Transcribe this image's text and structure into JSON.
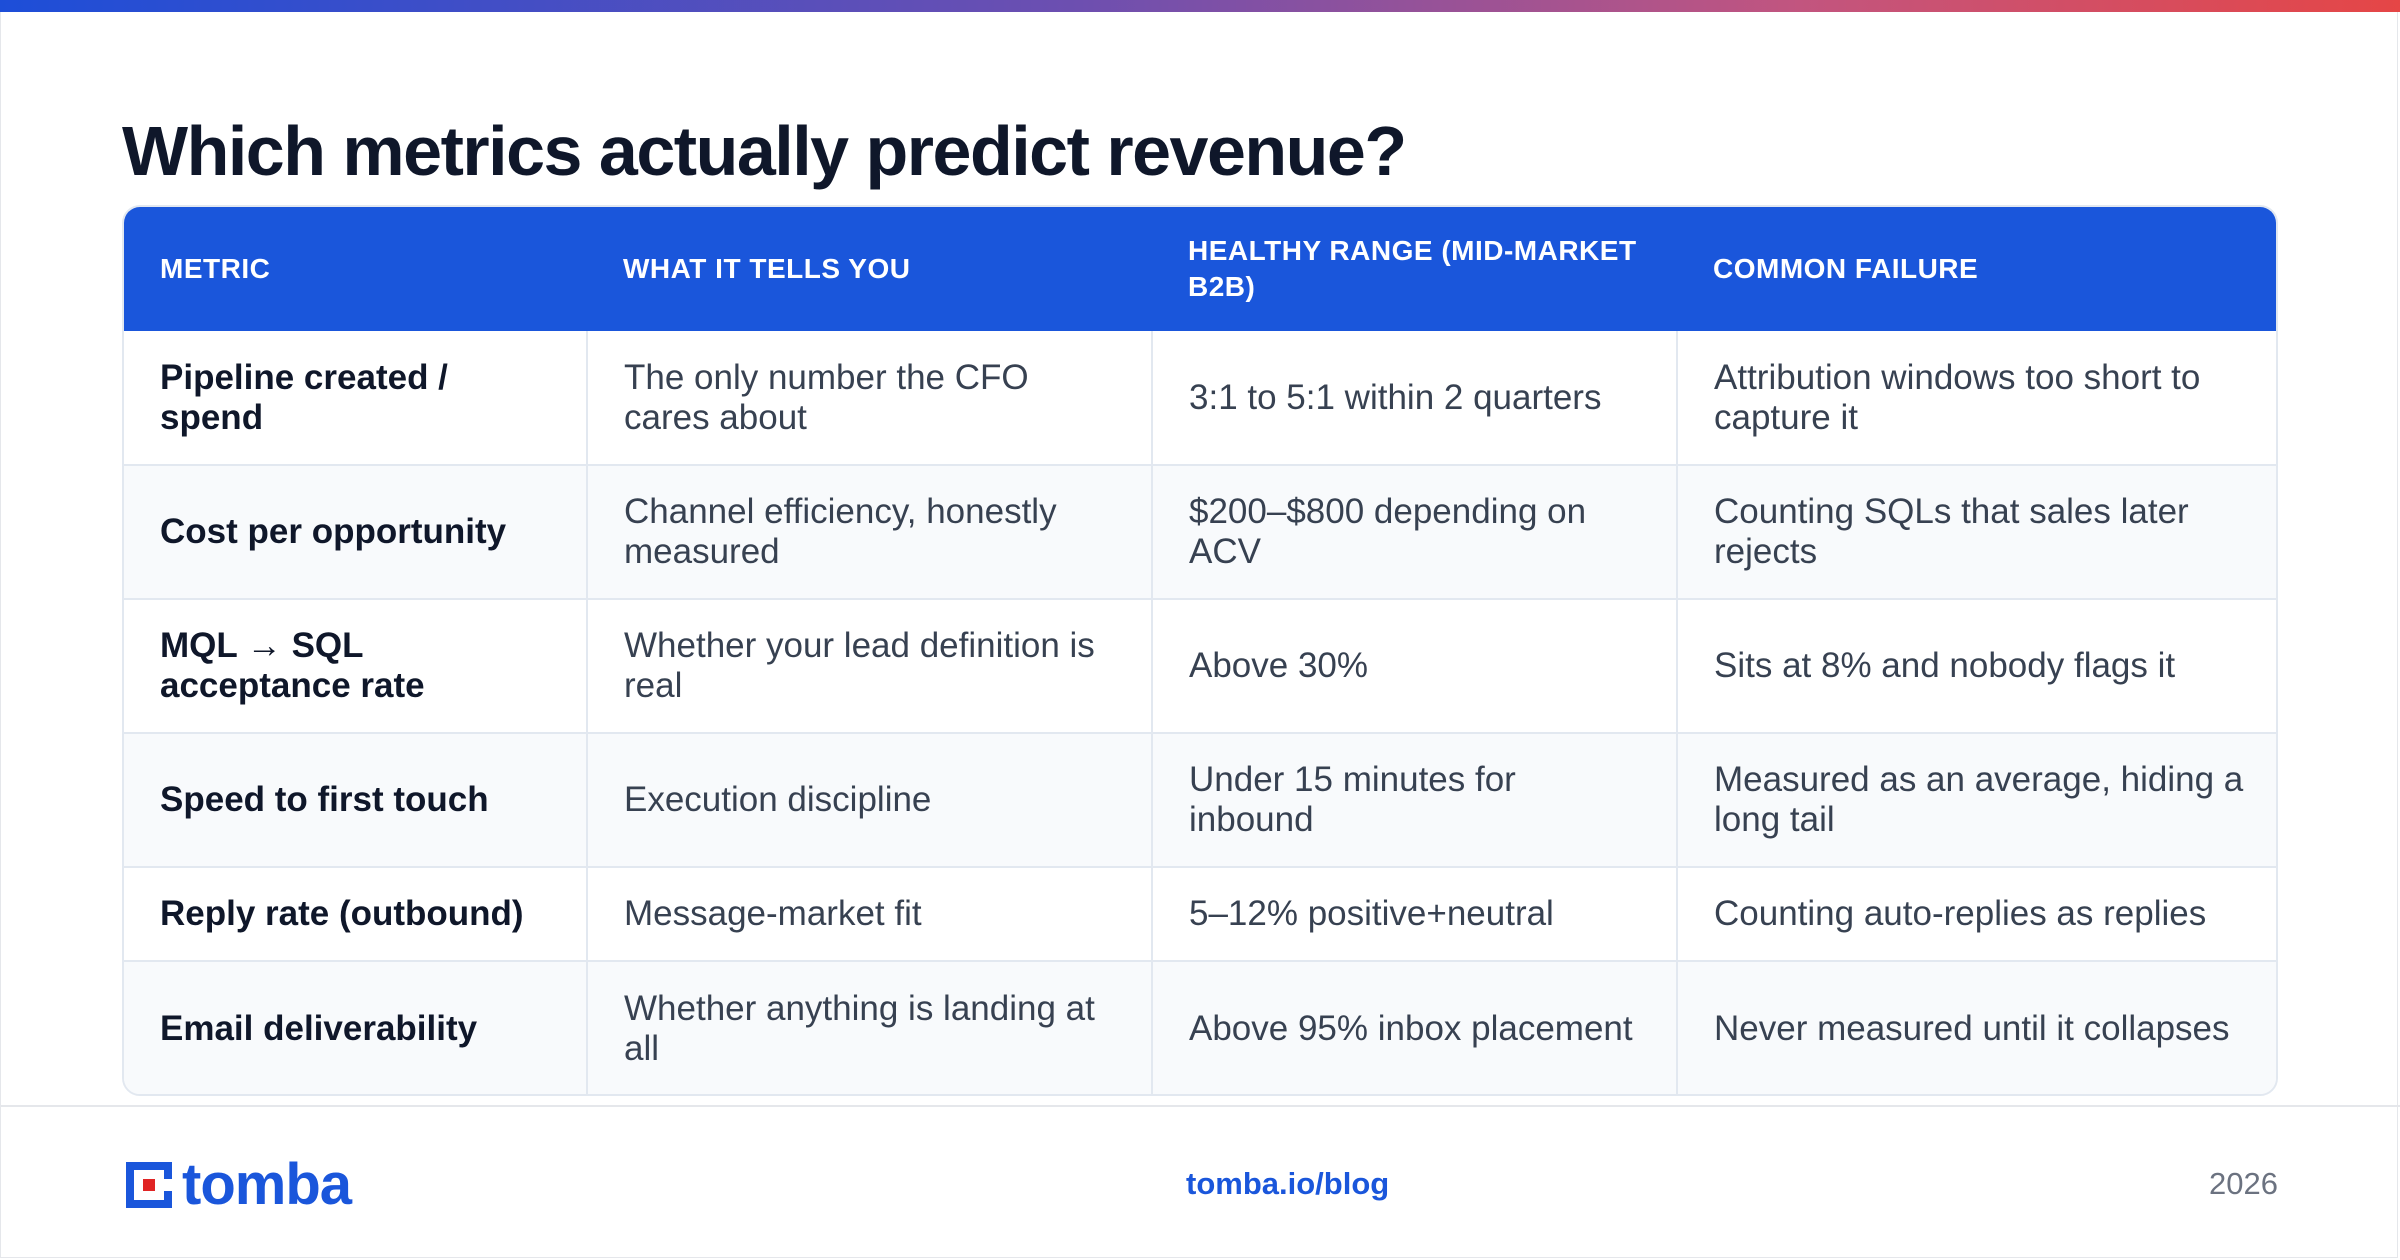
{
  "title": "Which metrics actually predict revenue?",
  "table": {
    "headers": [
      "METRIC",
      "WHAT IT TELLS YOU",
      "HEALTHY RANGE (MID-MARKET B2B)",
      "COMMON FAILURE"
    ],
    "rows": [
      [
        "Pipeline created / spend",
        "The only number the CFO cares about",
        "3:1 to 5:1 within 2 quarters",
        "Attribution windows too short to capture it"
      ],
      [
        "Cost per opportunity",
        "Channel efficiency, honestly measured",
        "$200–$800 depending on ACV",
        "Counting SQLs that sales later rejects"
      ],
      [
        "MQL → SQL acceptance rate",
        "Whether your lead definition is real",
        "Above 30%",
        "Sits at 8% and nobody flags it"
      ],
      [
        "Speed to first touch",
        "Execution discipline",
        "Under 15 minutes for inbound",
        "Measured as an average, hiding a long tail"
      ],
      [
        "Reply rate (outbound)",
        "Message-market fit",
        "5–12% positive+neutral",
        "Counting auto-replies as replies"
      ],
      [
        "Email deliverability",
        "Whether anything is landing at all",
        "Above 95% inbox placement",
        "Never measured until it collapses"
      ]
    ]
  },
  "footer": {
    "brand": "tomba",
    "link": "tomba.io/blog",
    "year": "2026"
  },
  "colors": {
    "accent": "#1a56db",
    "gradient": [
      "#1d4ed8",
      "#e54646"
    ],
    "logo_red": "#e02424"
  },
  "icons": {
    "logo": "tomba-logo-icon"
  }
}
